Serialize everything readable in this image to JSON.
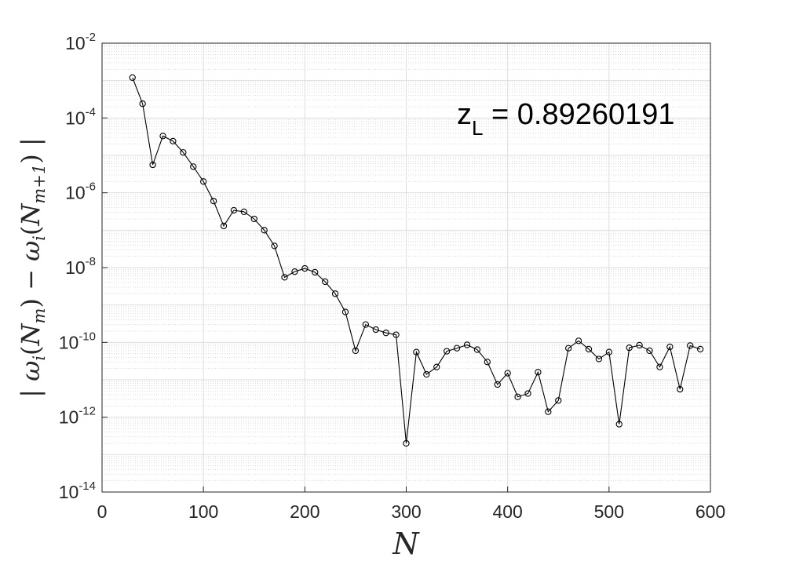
{
  "chart_data": {
    "type": "line",
    "xlabel": "N",
    "ylabel": {
      "lead": "| ",
      "omega1": "ω",
      "i1": "i",
      "open1": "(",
      "N1": "N",
      "m1": "m",
      "close1": ")",
      "minus": " − ",
      "omega2": "ω",
      "i2": "i",
      "open2": "(",
      "N2": "N",
      "m2": "m+1",
      "close2": ")",
      "trail": " |"
    },
    "annotation": {
      "main": "z",
      "sub": "L",
      "rest": " = 0.89260191"
    },
    "xlim": [
      0,
      600
    ],
    "ylim": [
      1e-14,
      0.01
    ],
    "yscale": "log",
    "grid": true,
    "minor_grid": true,
    "xticks": [
      0,
      100,
      200,
      300,
      400,
      500,
      600
    ],
    "yticks": [
      {
        "base": "10",
        "exp": "-2"
      },
      {
        "base": "10",
        "exp": "-4"
      },
      {
        "base": "10",
        "exp": "-6"
      },
      {
        "base": "10",
        "exp": "-8"
      },
      {
        "base": "10",
        "exp": "-10"
      },
      {
        "base": "10",
        "exp": "-12"
      },
      {
        "base": "10",
        "exp": "-14"
      }
    ],
    "series": [
      {
        "color": "#000000",
        "marker": "circle-open",
        "x": [
          30,
          40,
          50,
          60,
          70,
          80,
          90,
          100,
          110,
          120,
          130,
          140,
          150,
          160,
          170,
          180,
          190,
          200,
          210,
          220,
          230,
          240,
          250,
          260,
          270,
          280,
          290,
          300,
          310,
          320,
          330,
          340,
          350,
          360,
          370,
          380,
          390,
          400,
          410,
          420,
          430,
          440,
          450,
          460,
          470,
          480,
          490,
          500,
          510,
          520,
          530,
          540,
          550,
          560,
          570,
          580,
          590
        ],
        "y": [
          0.0012,
          0.00024,
          5.6e-06,
          3.3e-05,
          2.4e-05,
          1.2e-05,
          5e-06,
          2e-06,
          6e-07,
          1.3e-07,
          3.4e-07,
          3.1e-07,
          2e-07,
          1e-07,
          3.8e-08,
          5.5e-09,
          7.8e-09,
          9.5e-09,
          7.5e-09,
          4.2e-09,
          2e-09,
          6.5e-10,
          6e-11,
          3e-10,
          2.2e-10,
          1.8e-10,
          1.6e-10,
          2e-13,
          5.5e-11,
          1.4e-11,
          2.2e-11,
          5.8e-11,
          7e-11,
          8.6e-11,
          6.4e-11,
          3e-11,
          7.5e-12,
          1.5e-11,
          3.5e-12,
          4.3e-12,
          1.6e-11,
          1.4e-12,
          2.8e-12,
          7e-11,
          1.1e-10,
          6.6e-11,
          3.6e-11,
          5.5e-11,
          6.5e-13,
          7.2e-11,
          8.4e-11,
          6e-11,
          2.2e-11,
          7.6e-11,
          5.6e-12,
          8.2e-11,
          6.6e-11
        ]
      }
    ]
  }
}
